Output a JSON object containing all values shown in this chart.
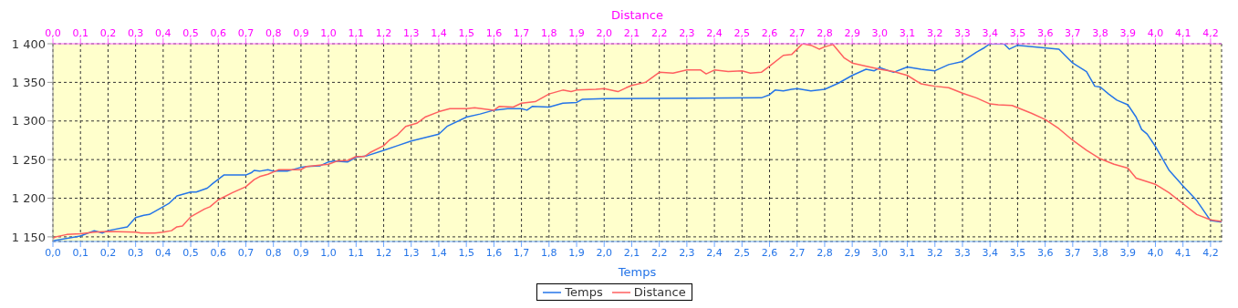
{
  "chart_data": {
    "type": "line",
    "xlabel": "Temps",
    "x2label": "Distance",
    "xlim": [
      0,
      4.24
    ],
    "x2lim": [
      0,
      4.24
    ],
    "ylim": [
      1144,
      1400
    ],
    "yticks": [
      {
        "value": 1150,
        "label": "1 150"
      },
      {
        "value": 1200,
        "label": "1 200"
      },
      {
        "value": 1250,
        "label": "1 250"
      },
      {
        "value": 1300,
        "label": "1 300"
      },
      {
        "value": 1350,
        "label": "1 350"
      },
      {
        "value": 1400,
        "label": "1 400"
      }
    ],
    "xticks": [
      {
        "value": 0,
        "label": "0,0"
      },
      {
        "value": 0.1,
        "label": "0,1"
      },
      {
        "value": 0.2,
        "label": "0,2"
      },
      {
        "value": 0.3,
        "label": "0,3"
      },
      {
        "value": 0.4,
        "label": "0,4"
      },
      {
        "value": 0.5,
        "label": "0,5"
      },
      {
        "value": 0.6,
        "label": "0,6"
      },
      {
        "value": 0.7,
        "label": "0,7"
      },
      {
        "value": 0.8,
        "label": "0,8"
      },
      {
        "value": 0.9,
        "label": "0,9"
      },
      {
        "value": 1,
        "label": "1,0"
      },
      {
        "value": 1.1,
        "label": "1,1"
      },
      {
        "value": 1.2,
        "label": "1,2"
      },
      {
        "value": 1.3,
        "label": "1,3"
      },
      {
        "value": 1.4,
        "label": "1,4"
      },
      {
        "value": 1.5,
        "label": "1,5"
      },
      {
        "value": 1.6,
        "label": "1,6"
      },
      {
        "value": 1.7,
        "label": "1,7"
      },
      {
        "value": 1.8,
        "label": "1,8"
      },
      {
        "value": 1.9,
        "label": "1,9"
      },
      {
        "value": 2,
        "label": "2,0"
      },
      {
        "value": 2.1,
        "label": "2,1"
      },
      {
        "value": 2.2,
        "label": "2,2"
      },
      {
        "value": 2.3,
        "label": "2,3"
      },
      {
        "value": 2.4,
        "label": "2,4"
      },
      {
        "value": 2.5,
        "label": "2,5"
      },
      {
        "value": 2.6,
        "label": "2,6"
      },
      {
        "value": 2.7,
        "label": "2,7"
      },
      {
        "value": 2.8,
        "label": "2,8"
      },
      {
        "value": 2.9,
        "label": "2,9"
      },
      {
        "value": 3,
        "label": "3,0"
      },
      {
        "value": 3.1,
        "label": "3,1"
      },
      {
        "value": 3.2,
        "label": "3,2"
      },
      {
        "value": 3.3,
        "label": "3,3"
      },
      {
        "value": 3.4,
        "label": "3,4"
      },
      {
        "value": 3.5,
        "label": "3,5"
      },
      {
        "value": 3.6,
        "label": "3,6"
      },
      {
        "value": 3.7,
        "label": "3,7"
      },
      {
        "value": 3.8,
        "label": "3,8"
      },
      {
        "value": 3.9,
        "label": "3,9"
      },
      {
        "value": 4,
        "label": "4,0"
      },
      {
        "value": 4.1,
        "label": "4,1"
      },
      {
        "value": 4.2,
        "label": "4,2"
      }
    ],
    "x2ticks": [
      {
        "value": 0,
        "label": "0,0"
      },
      {
        "value": 0.1,
        "label": "0,1"
      },
      {
        "value": 0.2,
        "label": "0,2"
      },
      {
        "value": 0.3,
        "label": "0,3"
      },
      {
        "value": 0.4,
        "label": "0,4"
      },
      {
        "value": 0.5,
        "label": "0,5"
      },
      {
        "value": 0.6,
        "label": "0,6"
      },
      {
        "value": 0.7,
        "label": "0,7"
      },
      {
        "value": 0.8,
        "label": "0,8"
      },
      {
        "value": 0.9,
        "label": "0,9"
      },
      {
        "value": 1,
        "label": "1,0"
      },
      {
        "value": 1.1,
        "label": "1,1"
      },
      {
        "value": 1.2,
        "label": "1,2"
      },
      {
        "value": 1.3,
        "label": "1,3"
      },
      {
        "value": 1.4,
        "label": "1,4"
      },
      {
        "value": 1.5,
        "label": "1,5"
      },
      {
        "value": 1.6,
        "label": "1,6"
      },
      {
        "value": 1.7,
        "label": "1,7"
      },
      {
        "value": 1.8,
        "label": "1,8"
      },
      {
        "value": 1.9,
        "label": "1,9"
      },
      {
        "value": 2,
        "label": "2,0"
      },
      {
        "value": 2.1,
        "label": "2,1"
      },
      {
        "value": 2.2,
        "label": "2,2"
      },
      {
        "value": 2.3,
        "label": "2,3"
      },
      {
        "value": 2.4,
        "label": "2,4"
      },
      {
        "value": 2.5,
        "label": "2,5"
      },
      {
        "value": 2.6,
        "label": "2,6"
      },
      {
        "value": 2.7,
        "label": "2,7"
      },
      {
        "value": 2.8,
        "label": "2,8"
      },
      {
        "value": 2.9,
        "label": "2,9"
      },
      {
        "value": 3,
        "label": "3,0"
      },
      {
        "value": 3.1,
        "label": "3,1"
      },
      {
        "value": 3.2,
        "label": "3,2"
      },
      {
        "value": 3.3,
        "label": "3,3"
      },
      {
        "value": 3.4,
        "label": "3,4"
      },
      {
        "value": 3.5,
        "label": "3,5"
      },
      {
        "value": 3.6,
        "label": "3,6"
      },
      {
        "value": 3.7,
        "label": "3,7"
      },
      {
        "value": 3.8,
        "label": "3,8"
      },
      {
        "value": 3.9,
        "label": "3,9"
      },
      {
        "value": 4,
        "label": "4,0"
      },
      {
        "value": 4.1,
        "label": "4,1"
      },
      {
        "value": 4.2,
        "label": "4,2"
      }
    ],
    "grid": true,
    "legend": "bottom",
    "marker": "none",
    "line_style": "solid",
    "series": [
      {
        "name": "Temps",
        "color": "#2474e8",
        "x": [
          0,
          0.1,
          0.15,
          0.18,
          0.2,
          0.27,
          0.3,
          0.33,
          0.35,
          0.4,
          0.42,
          0.45,
          0.5,
          0.52,
          0.56,
          0.58,
          0.62,
          0.7,
          0.72,
          0.73,
          0.75,
          0.78,
          0.8,
          0.85,
          0.9,
          0.92,
          0.97,
          1.0,
          1.02,
          1.07,
          1.1,
          1.14,
          1.2,
          1.25,
          1.3,
          1.4,
          1.43,
          1.5,
          1.55,
          1.6,
          1.65,
          1.7,
          1.72,
          1.74,
          1.8,
          1.85,
          1.9,
          1.92,
          2.0,
          2.57,
          2.6,
          2.62,
          2.65,
          2.68,
          2.7,
          2.75,
          2.8,
          2.85,
          2.9,
          2.95,
          2.98,
          3.0,
          3.05,
          3.1,
          3.15,
          3.2,
          3.25,
          3.3,
          3.35,
          3.38,
          3.4,
          3.45,
          3.47,
          3.5,
          3.65,
          3.7,
          3.75,
          3.78,
          3.8,
          3.83,
          3.86,
          3.9,
          3.93,
          3.95,
          3.97,
          4.0,
          4.05,
          4.1,
          4.15,
          4.2,
          4.24
        ],
        "values": [
          1145,
          1151,
          1158,
          1155,
          1158,
          1163,
          1175,
          1178,
          1179,
          1189,
          1193,
          1203,
          1208,
          1208,
          1213,
          1219,
          1230,
          1230,
          1233,
          1236,
          1235,
          1237,
          1235,
          1235,
          1240,
          1241,
          1242,
          1247,
          1248,
          1247,
          1253,
          1255,
          1262,
          1268,
          1274,
          1283,
          1293,
          1305,
          1309,
          1314,
          1316,
          1316,
          1314,
          1319,
          1318,
          1323,
          1324,
          1328,
          1329,
          1330,
          1334,
          1340,
          1339,
          1341,
          1342,
          1339,
          1341,
          1349,
          1359,
          1367,
          1365,
          1369,
          1363,
          1370,
          1367,
          1365,
          1373,
          1377,
          1389,
          1395,
          1400,
          1400,
          1393,
          1398,
          1393,
          1375,
          1364,
          1345,
          1344,
          1335,
          1327,
          1321,
          1305,
          1289,
          1283,
          1267,
          1236,
          1216,
          1197,
          1171,
          1169
        ]
      },
      {
        "name": "Distance",
        "color": "#ff5f5f",
        "x": [
          0,
          0.01,
          0.05,
          0.1,
          0.15,
          0.2,
          0.3,
          0.32,
          0.37,
          0.4,
          0.43,
          0.45,
          0.47,
          0.5,
          0.55,
          0.57,
          0.6,
          0.65,
          0.7,
          0.73,
          0.75,
          0.78,
          0.82,
          0.9,
          0.92,
          1.0,
          1.03,
          1.07,
          1.1,
          1.13,
          1.15,
          1.2,
          1.22,
          1.25,
          1.28,
          1.32,
          1.35,
          1.4,
          1.44,
          1.5,
          1.53,
          1.6,
          1.62,
          1.67,
          1.7,
          1.75,
          1.8,
          1.85,
          1.88,
          1.9,
          1.97,
          2.0,
          2.05,
          2.08,
          2.1,
          2.15,
          2.2,
          2.25,
          2.3,
          2.35,
          2.37,
          2.4,
          2.45,
          2.5,
          2.53,
          2.57,
          2.6,
          2.65,
          2.68,
          2.72,
          2.75,
          2.78,
          2.8,
          2.83,
          2.87,
          2.9,
          3.0,
          3.05,
          3.1,
          3.15,
          3.2,
          3.25,
          3.3,
          3.35,
          3.4,
          3.43,
          3.48,
          3.55,
          3.6,
          3.65,
          3.7,
          3.75,
          3.8,
          3.85,
          3.9,
          3.93,
          4.0,
          4.05,
          4.1,
          4.15,
          4.2,
          4.24
        ],
        "values": [
          1148,
          1150,
          1153,
          1154,
          1156,
          1157,
          1156,
          1155,
          1155,
          1156,
          1158,
          1163,
          1164,
          1176,
          1186,
          1189,
          1198,
          1207,
          1215,
          1224,
          1228,
          1231,
          1237,
          1237,
          1241,
          1244,
          1248,
          1249,
          1254,
          1254,
          1259,
          1268,
          1275,
          1282,
          1293,
          1297,
          1305,
          1312,
          1316,
          1316,
          1317,
          1314,
          1319,
          1318,
          1323,
          1325,
          1335,
          1340,
          1338,
          1340,
          1341,
          1342,
          1338,
          1343,
          1346,
          1350,
          1363,
          1362,
          1366,
          1366,
          1361,
          1366,
          1364,
          1365,
          1362,
          1363,
          1371,
          1385,
          1386,
          1400,
          1398,
          1393,
          1396,
          1399,
          1382,
          1375,
          1367,
          1364,
          1359,
          1348,
          1345,
          1343,
          1336,
          1330,
          1322,
          1321,
          1320,
          1310,
          1302,
          1290,
          1275,
          1262,
          1251,
          1244,
          1239,
          1226,
          1218,
          1207,
          1193,
          1179,
          1172,
          1170
        ]
      }
    ]
  }
}
